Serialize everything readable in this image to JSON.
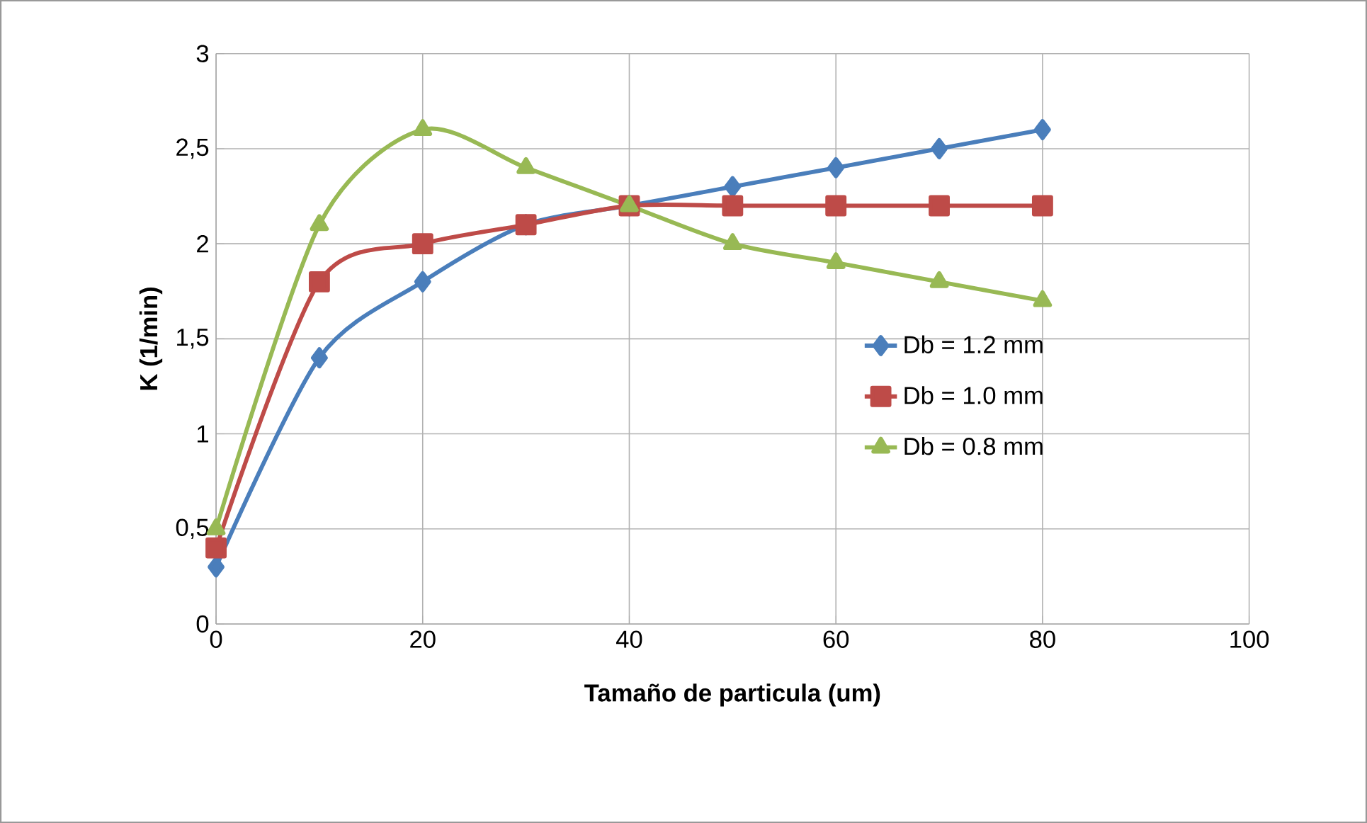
{
  "chart_data": {
    "type": "line",
    "xlabel": "Tamaño de particula (um)",
    "ylabel": "K (1/min)",
    "x": [
      0,
      10,
      20,
      30,
      40,
      50,
      60,
      70,
      80
    ],
    "series": [
      {
        "name": "Db = 1.2 mm",
        "color": "#4a7ebb",
        "marker": "diamond",
        "values": [
          0.3,
          1.4,
          1.8,
          2.1,
          2.2,
          2.3,
          2.4,
          2.5,
          2.6
        ]
      },
      {
        "name": "Db = 1.0 mm",
        "color": "#be4b48",
        "marker": "square",
        "values": [
          0.4,
          1.8,
          2.0,
          2.1,
          2.2,
          2.2,
          2.2,
          2.2,
          2.2
        ]
      },
      {
        "name": "Db = 0.8 mm",
        "color": "#98b954",
        "marker": "triangle",
        "values": [
          0.5,
          2.1,
          2.6,
          2.4,
          2.2,
          2.0,
          1.9,
          1.8,
          1.7
        ]
      }
    ],
    "xlim": [
      0,
      100
    ],
    "xticks": [
      0,
      20,
      40,
      60,
      80,
      100
    ],
    "ylim": [
      0,
      3
    ],
    "yticks": [
      0,
      {
        "value": 0.5,
        "label": "0,5"
      },
      1,
      {
        "value": 1.5,
        "label": "1,5"
      },
      2,
      {
        "value": 2.5,
        "label": "2,5"
      },
      3
    ],
    "grid": true,
    "legend": "right"
  }
}
